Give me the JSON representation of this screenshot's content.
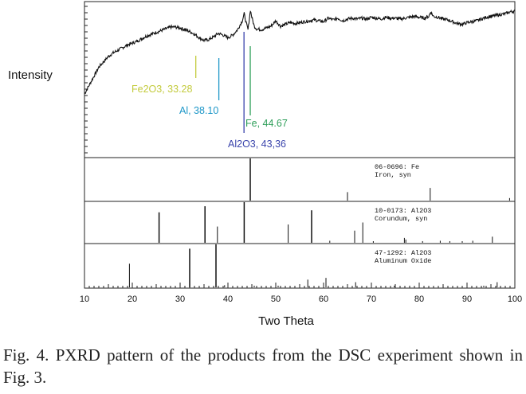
{
  "chart_data": {
    "type": "line",
    "ylabel": "Intensity",
    "xlabel": "Two Theta",
    "xlim": [
      10,
      100
    ],
    "x_ticks": [
      10,
      20,
      30,
      40,
      50,
      60,
      70,
      80,
      90,
      100
    ],
    "series": [
      {
        "name": "PXRD pattern",
        "x": [
          10,
          11,
          12,
          13,
          14,
          15,
          16,
          17,
          18,
          19,
          20,
          21,
          22,
          23,
          24,
          25,
          26,
          27,
          28,
          29,
          30,
          31,
          32,
          33,
          34,
          35,
          36,
          37,
          38,
          39,
          40,
          41,
          42,
          43,
          43.4,
          43.8,
          44.2,
          44.7,
          45,
          45.5,
          46,
          47,
          48,
          49,
          50,
          51,
          52,
          53,
          54,
          55,
          56,
          57,
          58,
          59,
          60,
          61,
          62,
          63,
          64,
          65,
          66,
          67,
          68,
          69,
          70,
          71,
          72,
          73,
          74,
          75,
          76,
          77,
          78,
          79,
          80,
          81,
          82,
          82.4,
          83,
          84,
          85,
          86,
          87,
          88,
          89,
          90,
          91,
          92,
          93,
          94,
          95,
          96,
          97,
          98,
          99,
          100
        ],
        "y": [
          0.0,
          0.1,
          0.2,
          0.3,
          0.36,
          0.42,
          0.46,
          0.49,
          0.52,
          0.55,
          0.57,
          0.59,
          0.62,
          0.65,
          0.67,
          0.69,
          0.71,
          0.73,
          0.75,
          0.75,
          0.74,
          0.72,
          0.7,
          0.67,
          0.63,
          0.6,
          0.61,
          0.64,
          0.68,
          0.66,
          0.63,
          0.66,
          0.72,
          0.82,
          0.9,
          0.8,
          0.72,
          0.94,
          0.86,
          0.76,
          0.73,
          0.72,
          0.74,
          0.76,
          0.82,
          0.76,
          0.78,
          0.8,
          0.79,
          0.8,
          0.81,
          0.82,
          0.83,
          0.82,
          0.81,
          0.85,
          0.83,
          0.85,
          0.82,
          0.84,
          0.85,
          0.84,
          0.85,
          0.84,
          0.86,
          0.85,
          0.84,
          0.86,
          0.85,
          0.85,
          0.84,
          0.85,
          0.86,
          0.87,
          0.86,
          0.85,
          0.87,
          0.92,
          0.87,
          0.86,
          0.84,
          0.83,
          0.81,
          0.79,
          0.78,
          0.8,
          0.81,
          0.82,
          0.84,
          0.86,
          0.87,
          0.88,
          0.89,
          0.9,
          0.92,
          0.93
        ]
      }
    ],
    "annotations": [
      {
        "label": "Fe2O3, 33.28",
        "x": 33.28,
        "color": "#c3cb3c"
      },
      {
        "label": "Al, 38.10",
        "x": 38.1,
        "color": "#1e97c8"
      },
      {
        "label": "Fe, 44.67",
        "x": 44.67,
        "color": "#2f9f5a"
      },
      {
        "label": "Al2O3, 43,36",
        "x": 43.36,
        "color": "#3b45ac"
      }
    ],
    "reference_panels": [
      {
        "id": "06-0696",
        "label_line1": "06-0696: Fe",
        "label_line2": "Iron, syn",
        "peaks": [
          {
            "x": 44.67,
            "i": 100
          },
          {
            "x": 65.0,
            "i": 20
          },
          {
            "x": 82.3,
            "i": 30
          },
          {
            "x": 98.9,
            "i": 6
          }
        ]
      },
      {
        "id": "10-0173",
        "label_line1": "10-0173: Al2O3",
        "label_line2": "Corundum, syn",
        "peaks": [
          {
            "x": 25.6,
            "i": 75
          },
          {
            "x": 35.2,
            "i": 90
          },
          {
            "x": 37.8,
            "i": 40
          },
          {
            "x": 43.4,
            "i": 100
          },
          {
            "x": 52.6,
            "i": 45
          },
          {
            "x": 57.5,
            "i": 80
          },
          {
            "x": 61.3,
            "i": 5
          },
          {
            "x": 66.5,
            "i": 30
          },
          {
            "x": 68.2,
            "i": 50
          },
          {
            "x": 70.4,
            "i": 3
          },
          {
            "x": 76.9,
            "i": 12
          },
          {
            "x": 77.2,
            "i": 8
          },
          {
            "x": 80.7,
            "i": 4
          },
          {
            "x": 84.4,
            "i": 5
          },
          {
            "x": 86.4,
            "i": 4
          },
          {
            "x": 89.0,
            "i": 4
          },
          {
            "x": 91.2,
            "i": 5
          },
          {
            "x": 95.3,
            "i": 15
          }
        ]
      },
      {
        "id": "47-1292",
        "label_line1": "47-1292: Al2O3",
        "label_line2": "Aluminum Oxide",
        "peaks": [
          {
            "x": 19.4,
            "i": 55
          },
          {
            "x": 32.0,
            "i": 90
          },
          {
            "x": 37.5,
            "i": 100
          },
          {
            "x": 39.3,
            "i": 5
          },
          {
            "x": 45.5,
            "i": 4
          },
          {
            "x": 50.5,
            "i": 4
          },
          {
            "x": 56.7,
            "i": 18
          },
          {
            "x": 60.5,
            "i": 22
          },
          {
            "x": 66.7,
            "i": 12
          },
          {
            "x": 74.8,
            "i": 4
          },
          {
            "x": 78.0,
            "i": 4
          },
          {
            "x": 85.0,
            "i": 4
          },
          {
            "x": 93.5,
            "i": 4
          },
          {
            "x": 96.3,
            "i": 12
          }
        ]
      }
    ]
  },
  "caption": "Fig. 4. PXRD pattern of the products from the DSC experiment shown in Fig. 3."
}
